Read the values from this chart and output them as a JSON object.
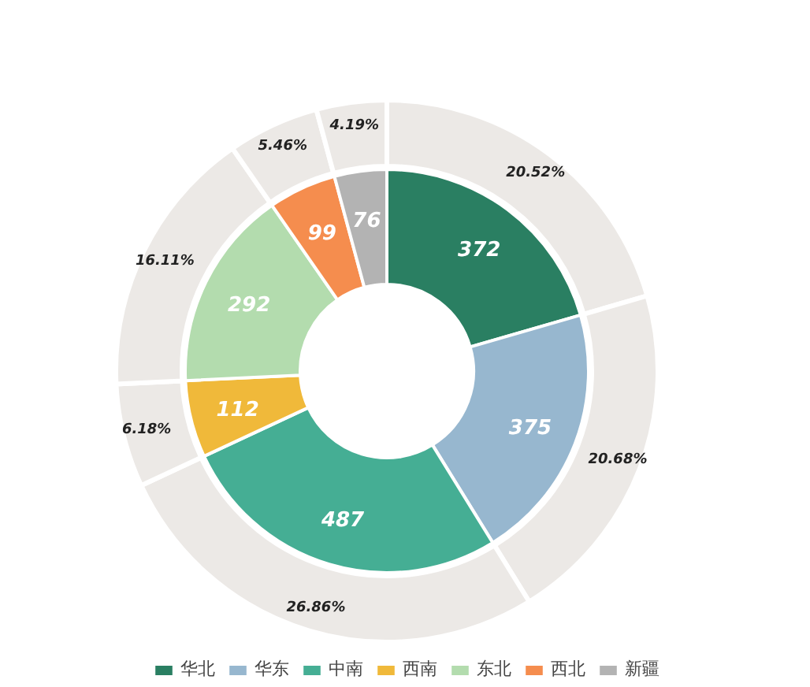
{
  "chart_data": {
    "type": "donut",
    "categories": [
      "华北",
      "华东",
      "中南",
      "西南",
      "东北",
      "西北",
      "新疆"
    ],
    "series": [
      {
        "color": "#ece9e6",
        "values": [
          20.52,
          20.68,
          26.86,
          6.18,
          16.11,
          5.46,
          4.19
        ],
        "value_labels": [
          "20.52%",
          "20.68%",
          "26.86%",
          "6.18%",
          "16.11%",
          "5.46%",
          "4.19%"
        ]
      },
      {
        "colors": [
          "#2a7f62",
          "#97b7cf",
          "#45ae94",
          "#f0b93a",
          "#b3dcae",
          "#f58d4e",
          "#b3b3b3"
        ],
        "values": [
          372,
          375,
          487,
          112,
          292,
          99,
          76
        ]
      }
    ],
    "data_labels": true,
    "legend": "bottom"
  }
}
